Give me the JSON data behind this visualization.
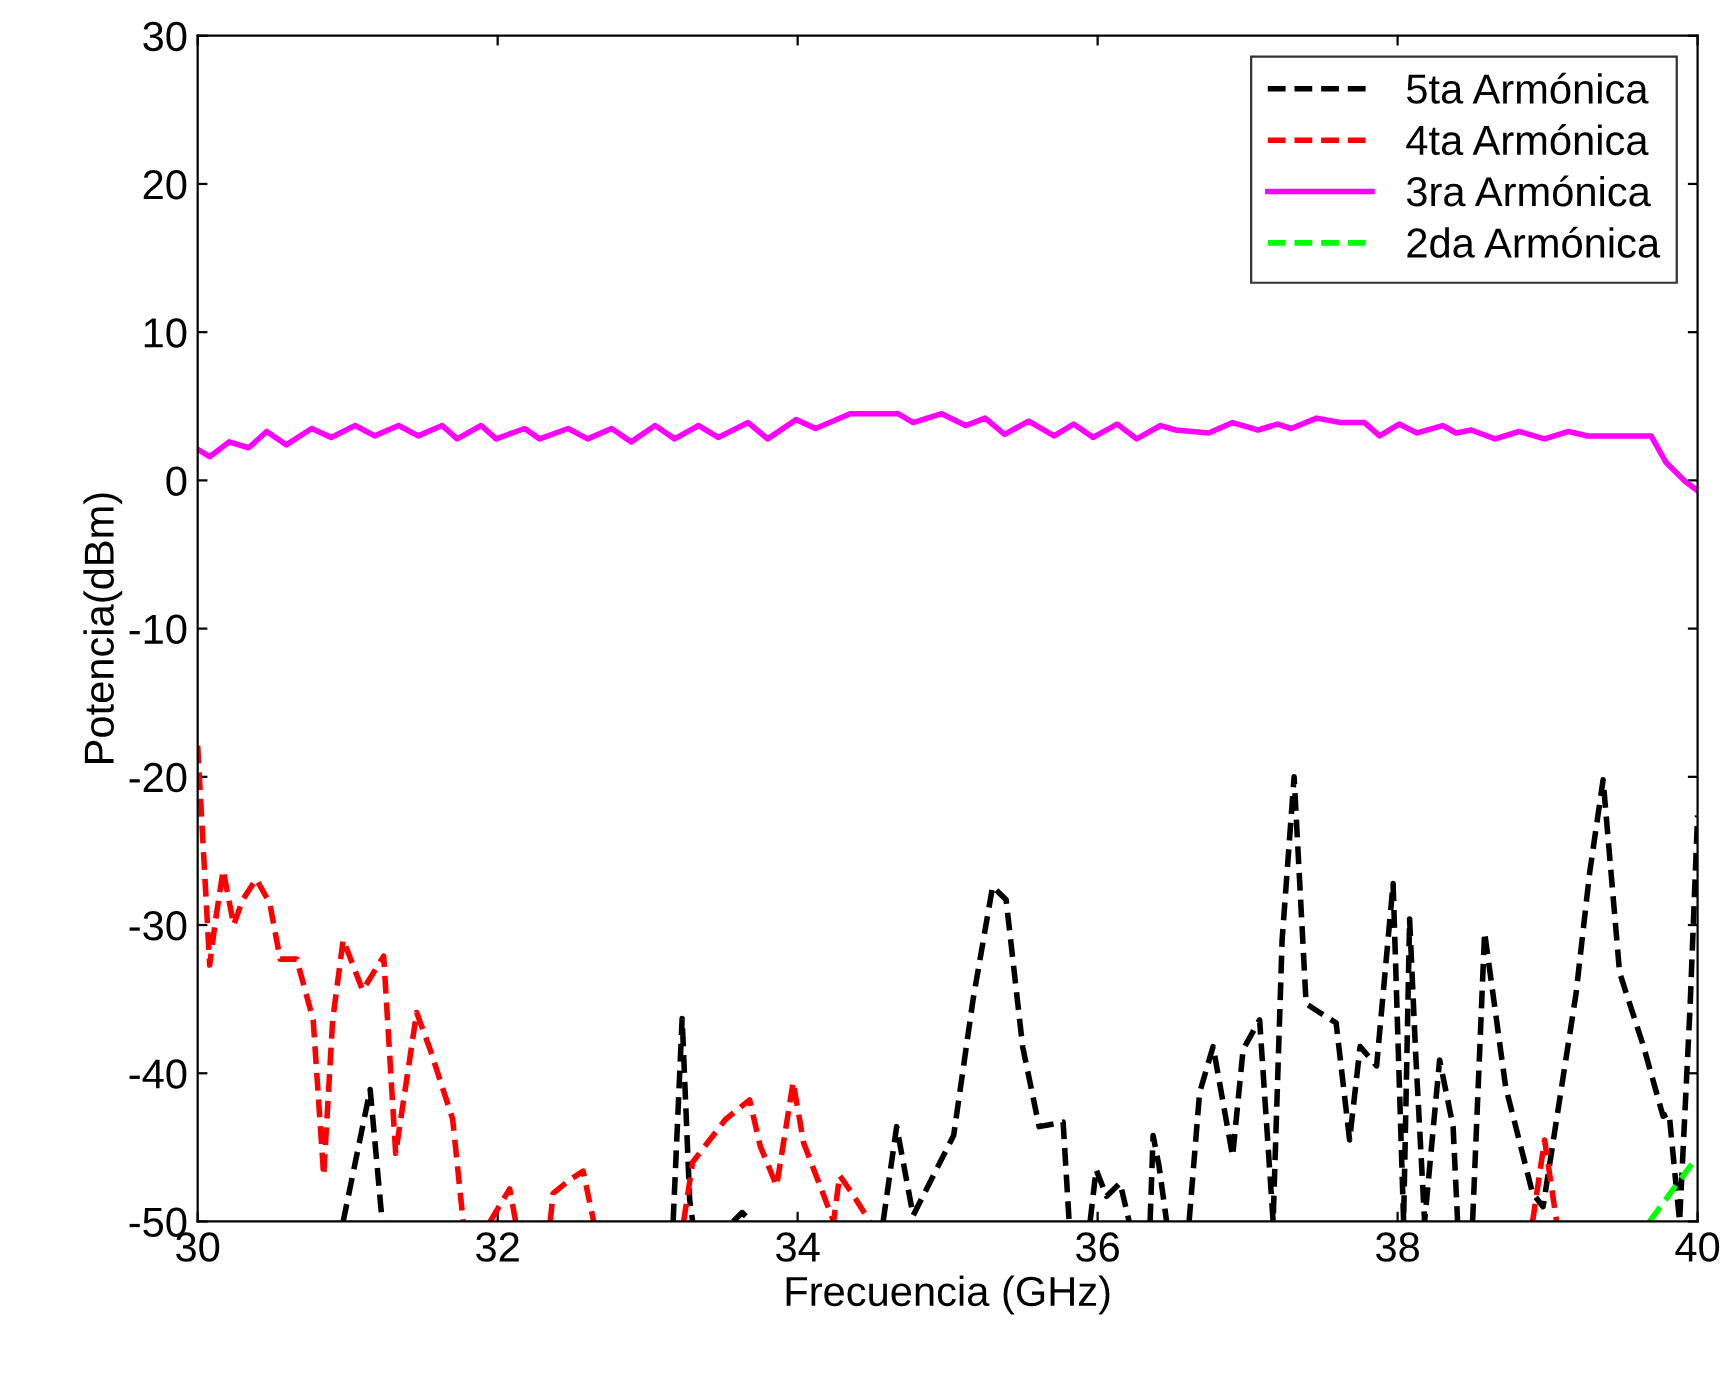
{
  "chart_data": {
    "type": "line",
    "xlabel": "Frecuencia (GHz)",
    "ylabel": "Potencia(dBm)",
    "xlim": [
      30,
      40
    ],
    "ylim": [
      -50,
      30
    ],
    "xticks": [
      30,
      32,
      34,
      36,
      38,
      40
    ],
    "yticks": [
      -50,
      -40,
      -30,
      -20,
      -10,
      0,
      10,
      20,
      30
    ],
    "grid": false,
    "legend": "top right",
    "marker": "none",
    "series": [
      {
        "name": "5ta Armónica",
        "color": "#000000",
        "line_style": "dashed",
        "x": [
          30.97,
          31.15,
          31.23,
          31.25,
          33.17,
          33.23,
          33.28,
          33.3,
          33.32,
          33.57,
          33.63,
          33.69,
          33.7,
          34.57,
          34.66,
          34.77,
          35.04,
          35.17,
          35.3,
          35.39,
          35.5,
          35.61,
          35.77,
          35.81,
          35.83,
          35.95,
          35.99,
          36.06,
          36.15,
          36.21,
          36.23,
          36.35,
          36.37,
          36.41,
          36.46,
          36.48,
          36.61,
          36.68,
          36.77,
          36.9,
          36.97,
          37.08,
          37.17,
          37.23,
          37.31,
          37.39,
          37.48,
          37.59,
          37.68,
          37.75,
          37.86,
          37.97,
          38.04,
          38.08,
          38.12,
          38.18,
          38.28,
          38.37,
          38.4,
          38.42,
          38.5,
          38.58,
          38.72,
          38.9,
          38.97,
          39.19,
          39.28,
          39.37,
          39.48,
          39.64,
          39.77,
          39.81,
          39.88,
          39.95,
          40.0
        ],
        "values": [
          -50,
          -41.1,
          -50,
          null,
          -50,
          -36.3,
          -48.5,
          -50,
          null,
          -50,
          -49.4,
          -50,
          null,
          -50,
          -43.6,
          -49.6,
          -44.2,
          -35.0,
          -27.4,
          -28.3,
          -38.2,
          -43.6,
          -43.3,
          -50,
          null,
          -50,
          -46.5,
          -48.3,
          -47.4,
          -50,
          null,
          -50,
          -44.2,
          -46.3,
          -50,
          null,
          -50,
          -41.3,
          -38.2,
          -45.6,
          -38.4,
          -36.4,
          -50,
          -31.0,
          -20.0,
          -35.3,
          -35.9,
          -36.6,
          -44.5,
          -38.2,
          -39.5,
          -27.2,
          -50,
          -29.6,
          -38.6,
          -50,
          -39.1,
          -43.6,
          -50,
          null,
          -50,
          -30.5,
          -40.9,
          -48.1,
          -49.0,
          -34.6,
          -26.5,
          -20.2,
          -33.2,
          -38.2,
          -42.9,
          -42.7,
          -50,
          -35.5,
          -22.6
        ]
      },
      {
        "name": "4ta Armónica",
        "color": "#ff0000",
        "line_style": "dashed",
        "x": [
          30.0,
          30.08,
          30.12,
          30.17,
          30.24,
          30.3,
          30.39,
          30.48,
          30.55,
          30.66,
          30.77,
          30.84,
          30.9,
          30.97,
          31.1,
          31.24,
          31.32,
          31.46,
          31.55,
          31.7,
          31.77,
          31.8,
          31.95,
          32.08,
          32.12,
          32.15,
          32.35,
          32.37,
          32.48,
          32.57,
          32.64,
          32.66,
          33.24,
          33.3,
          33.52,
          33.68,
          33.75,
          33.86,
          33.97,
          34.04,
          34.24,
          34.28,
          34.37,
          34.48,
          34.5,
          38.9,
          38.98,
          39.06
        ],
        "values": [
          -17.9,
          -32.7,
          -29.6,
          -26.3,
          -30.0,
          -28.3,
          -26.9,
          -28.5,
          -32.3,
          -32.3,
          -36.4,
          -46.9,
          -36.4,
          -31.0,
          -34.4,
          -32.1,
          -45.4,
          -35.9,
          -38.4,
          -43.1,
          -50,
          null,
          -50,
          -47.8,
          -50,
          null,
          -50,
          -48.1,
          -47.2,
          -46.6,
          -50,
          null,
          -50,
          -46.0,
          -43.1,
          -41.8,
          -44.9,
          -47.6,
          -40.6,
          -44.7,
          -50,
          -46.9,
          -48.2,
          -50,
          null,
          -50,
          -44.5,
          -50
        ]
      },
      {
        "name": "3ra Armónica",
        "color": "#ff00ff",
        "line_style": "solid",
        "x": [
          30.0,
          30.08,
          30.21,
          30.34,
          30.46,
          30.59,
          30.76,
          30.89,
          31.05,
          31.18,
          31.34,
          31.47,
          31.63,
          31.73,
          31.89,
          31.99,
          32.18,
          32.28,
          32.47,
          32.6,
          32.76,
          32.89,
          33.05,
          33.18,
          33.34,
          33.47,
          33.67,
          33.8,
          33.99,
          34.12,
          34.35,
          34.67,
          34.77,
          34.96,
          35.12,
          35.25,
          35.38,
          35.54,
          35.71,
          35.84,
          35.97,
          36.13,
          36.26,
          36.42,
          36.52,
          36.74,
          36.9,
          37.07,
          37.2,
          37.29,
          37.46,
          37.62,
          37.78,
          37.88,
          38.01,
          38.13,
          38.3,
          38.39,
          38.49,
          38.65,
          38.81,
          38.98,
          39.14,
          39.27,
          39.4,
          39.69,
          39.79,
          39.92,
          40.0
        ],
        "values": [
          2.1,
          1.6,
          2.6,
          2.2,
          3.3,
          2.4,
          3.5,
          2.9,
          3.7,
          3.0,
          3.7,
          3.0,
          3.7,
          2.8,
          3.7,
          2.8,
          3.5,
          2.8,
          3.5,
          2.8,
          3.5,
          2.6,
          3.7,
          2.8,
          3.7,
          2.9,
          3.9,
          2.8,
          4.1,
          3.5,
          4.5,
          4.5,
          3.9,
          4.5,
          3.7,
          4.2,
          3.1,
          4.0,
          3.0,
          3.8,
          2.9,
          3.8,
          2.8,
          3.7,
          3.4,
          3.2,
          3.9,
          3.4,
          3.8,
          3.5,
          4.2,
          3.9,
          3.9,
          3.0,
          3.8,
          3.2,
          3.7,
          3.2,
          3.4,
          2.8,
          3.3,
          2.8,
          3.3,
          3.0,
          3.0,
          3.0,
          1.2,
          -0.1,
          -0.7
        ]
      },
      {
        "name": "2da Armónica",
        "color": "#00ff00",
        "line_style": "dashed",
        "x": [
          39.68,
          39.97,
          40.0
        ],
        "values": [
          -50,
          -46.0,
          -45.8
        ]
      }
    ]
  }
}
